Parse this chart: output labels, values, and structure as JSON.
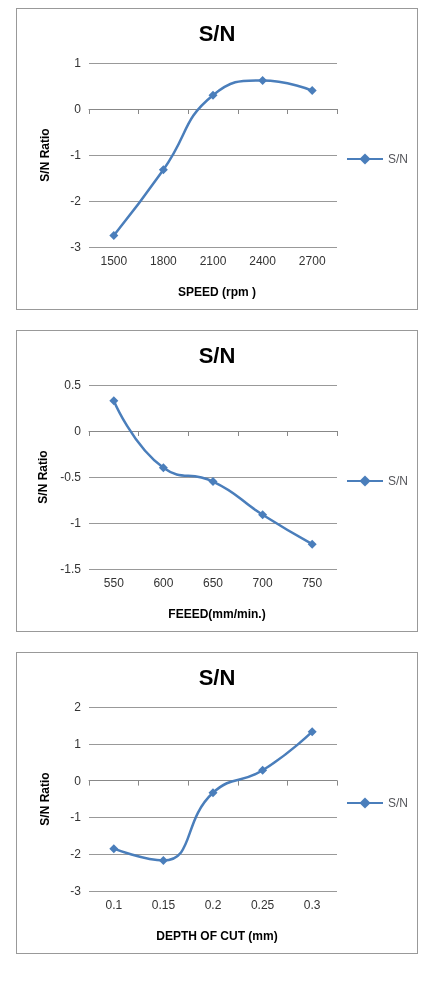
{
  "chart_data": [
    {
      "type": "line",
      "title": "S/N",
      "xlabel": "SPEED (rpm )",
      "ylabel": "S/N Ratio",
      "categories": [
        "1500",
        "1800",
        "2100",
        "2400",
        "2700"
      ],
      "series": [
        {
          "name": "S/N",
          "color": "#4a7ebb",
          "values": [
            -2.75,
            -1.32,
            0.3,
            0.62,
            0.4
          ]
        }
      ],
      "ylim": [
        -3,
        1
      ],
      "yticks": [
        -3,
        -2,
        -1,
        0,
        1
      ],
      "grid": "y",
      "legend": "right",
      "marker": "diamond",
      "line_style": "solid"
    },
    {
      "type": "line",
      "title": "S/N",
      "xlabel": "FEEED(mm/min.)",
      "ylabel": "S/N Ratio",
      "categories": [
        "550",
        "600",
        "650",
        "700",
        "750"
      ],
      "series": [
        {
          "name": "S/N",
          "color": "#4a7ebb",
          "values": [
            0.33,
            -0.4,
            -0.55,
            -0.91,
            -1.23
          ]
        }
      ],
      "ylim": [
        -1.5,
        0.5
      ],
      "yticks": [
        -1.5,
        -1,
        -0.5,
        0,
        0.5
      ],
      "grid": "y",
      "legend": "right",
      "marker": "diamond",
      "line_style": "solid"
    },
    {
      "type": "line",
      "title": "S/N",
      "xlabel": "DEPTH OF CUT (mm)",
      "ylabel": "S/N Ratio",
      "categories": [
        "0.1",
        "0.15",
        "0.2",
        "0.25",
        "0.3"
      ],
      "series": [
        {
          "name": "S/N",
          "color": "#4a7ebb",
          "values": [
            -1.85,
            -2.17,
            -0.33,
            0.28,
            1.33
          ]
        }
      ],
      "ylim": [
        -3,
        2
      ],
      "yticks": [
        -3,
        -2,
        -1,
        0,
        1,
        2
      ],
      "grid": "y",
      "legend": "right",
      "marker": "diamond",
      "line_style": "solid"
    }
  ]
}
